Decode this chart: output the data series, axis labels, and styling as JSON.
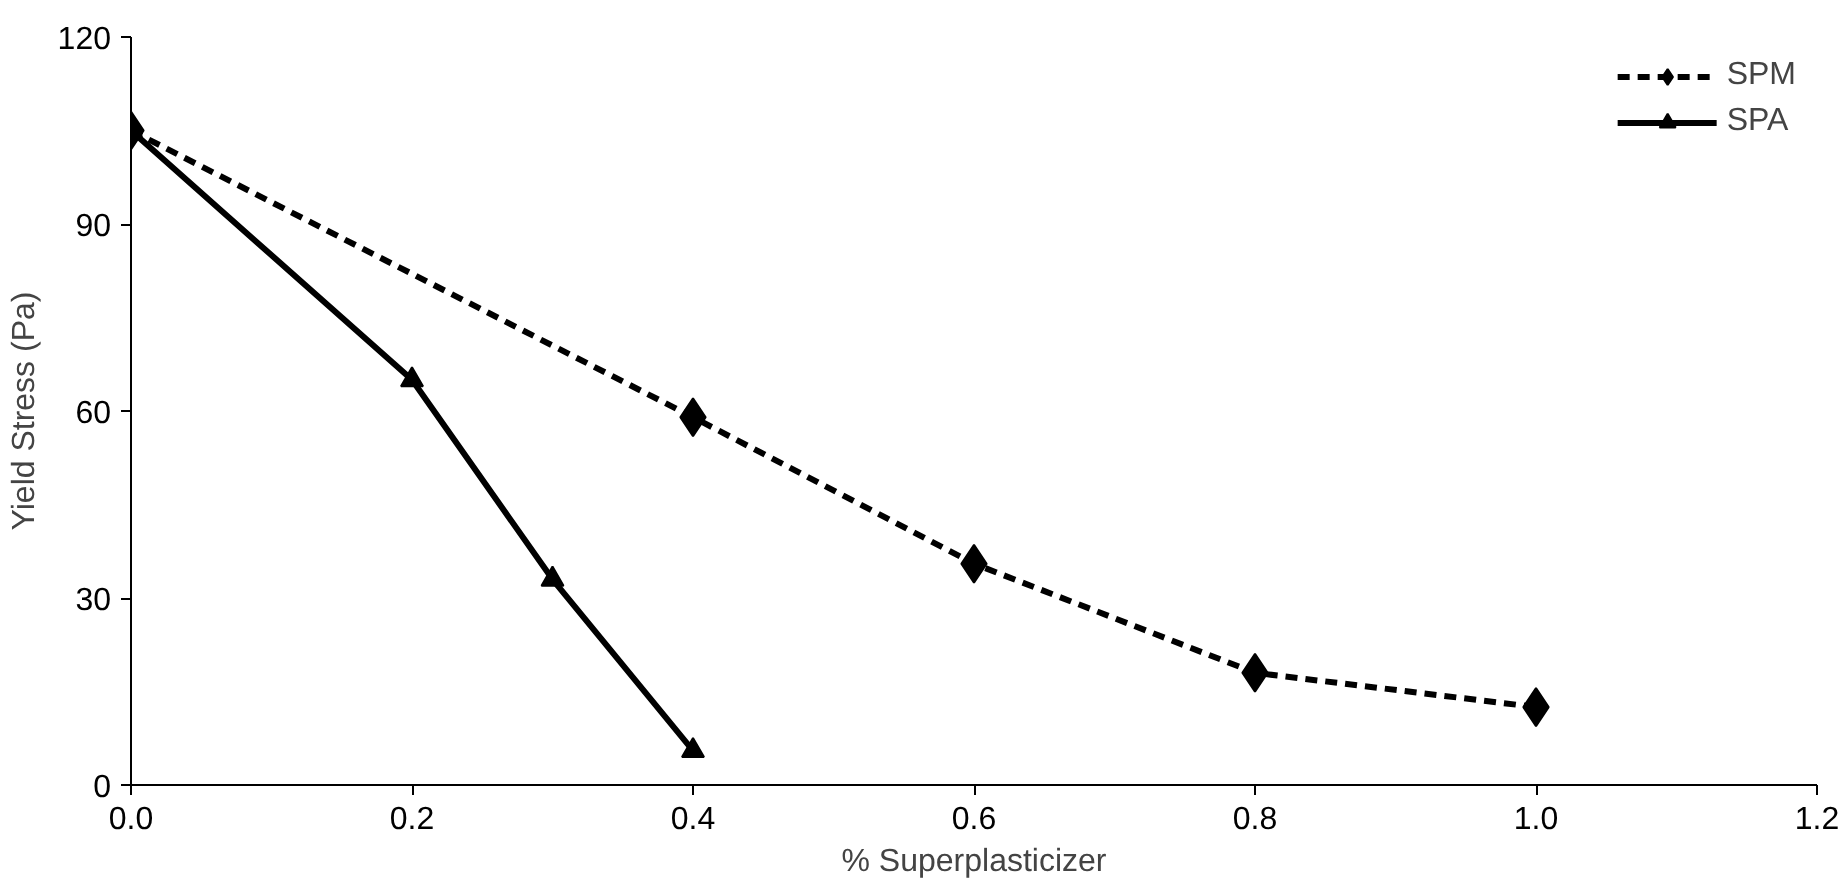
{
  "chart_data": {
    "type": "line",
    "xlabel": "% Superplasticizer",
    "ylabel": "Yield Stress (Pa)",
    "xlim": [
      0,
      1.2
    ],
    "ylim": [
      0,
      120
    ],
    "xticks": [
      {
        "value": 0,
        "label": "0.0"
      },
      {
        "value": 0.2,
        "label": "0.2"
      },
      {
        "value": 0.4,
        "label": "0.4"
      },
      {
        "value": 0.6,
        "label": "0.6"
      },
      {
        "value": 0.8,
        "label": "0.8"
      },
      {
        "value": 1.0,
        "label": "1.0"
      },
      {
        "value": 1.2,
        "label": "1.2"
      }
    ],
    "yticks": [
      0,
      30,
      60,
      90,
      120
    ],
    "grid": false,
    "legend": "top right",
    "series": [
      {
        "name": "SPM",
        "color": "#000000",
        "marker": "diamond",
        "line_style": "dashed",
        "x": [
          0,
          0.4,
          0.6,
          0.8,
          1.0
        ],
        "values": [
          105,
          59,
          35.5,
          18,
          12.5
        ]
      },
      {
        "name": "SPA",
        "color": "#000000",
        "marker": "triangle",
        "line_style": "solid",
        "x": [
          0,
          0.2,
          0.3,
          0.4
        ],
        "values": [
          105,
          65,
          33,
          5.5
        ]
      }
    ]
  }
}
